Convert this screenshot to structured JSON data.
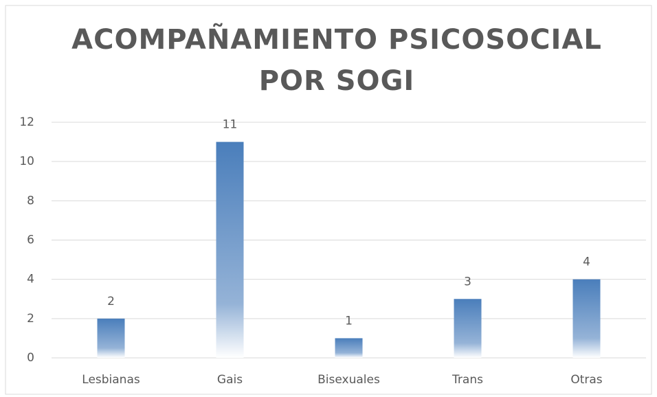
{
  "chart_data": {
    "type": "bar",
    "title": "ACOMPAÑAMIENTO PSICOSOCIAL POR SOGI",
    "categories": [
      "Lesbianas",
      "Gais",
      "Bisexuales",
      "Trans",
      "Otras"
    ],
    "values": [
      2,
      11,
      1,
      3,
      4
    ],
    "color": "#4a7ebb",
    "ylim": [
      0,
      12
    ],
    "yticks": [
      0,
      2,
      4,
      6,
      8,
      10,
      12
    ],
    "grid": true
  }
}
